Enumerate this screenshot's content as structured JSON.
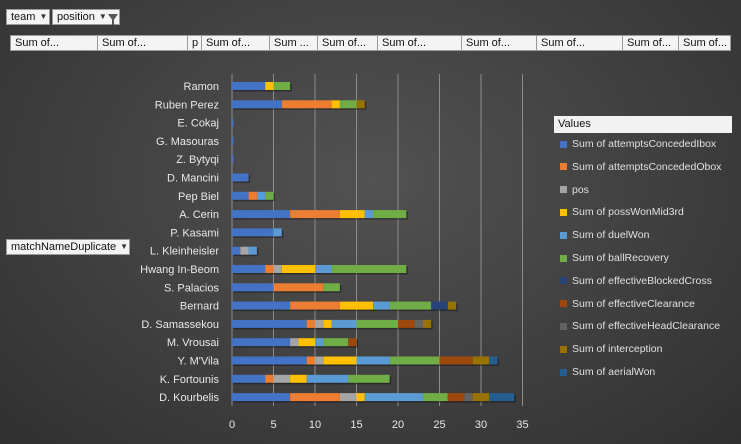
{
  "filters": {
    "team": "team",
    "position": "position"
  },
  "row_field": "matchNameDuplicate",
  "value_fields": [
    "Sum of...",
    "Sum of...",
    "p",
    "Sum of...",
    "Sum ...",
    "Sum of...",
    "Sum of...",
    "Sum of...",
    "Sum of...",
    "Sum of...",
    "Sum of..."
  ],
  "legend": {
    "title": "Values"
  },
  "colors": [
    "#4472c4",
    "#ed7d31",
    "#a5a5a5",
    "#ffc000",
    "#5b9bd5",
    "#70ad47",
    "#264478",
    "#9e480e",
    "#636363",
    "#997300",
    "#255e91"
  ],
  "chart_data": {
    "type": "bar",
    "orientation": "horizontal",
    "stacked": true,
    "grid": true,
    "xlim": [
      0,
      35
    ],
    "xticks": [
      "0",
      "5",
      "10",
      "15",
      "20",
      "25",
      "30",
      "35"
    ],
    "categories": [
      "Ramon",
      "Ruben Perez",
      "E. Cokaj",
      "G. Masouras",
      "Z. Bytyqi",
      "D. Mancini",
      "Pep Biel",
      "A. Cerin",
      "P. Kasami",
      "L. Kleinheisler",
      "Hwang In-Beom",
      "S. Palacios",
      "Bernard",
      "D. Samassekou",
      "M. Vrousai",
      "Y. M'Vila",
      "K. Fortounis",
      "D. Kourbelis"
    ],
    "series": [
      {
        "name": "Sum of attemptsConcededIbox",
        "values": [
          4,
          6,
          0,
          0,
          0,
          2,
          2,
          7,
          5,
          1,
          4,
          5,
          7,
          9,
          7,
          9,
          4,
          7
        ]
      },
      {
        "name": "Sum of attemptsConcededObox",
        "values": [
          0,
          6,
          0,
          0,
          0,
          0,
          1,
          6,
          0,
          0,
          1,
          6,
          6,
          1,
          0,
          1,
          1,
          6
        ]
      },
      {
        "name": "pos",
        "values": [
          0,
          0,
          0,
          0,
          0,
          0,
          0,
          0,
          0,
          1,
          1,
          0,
          0,
          1,
          1,
          1,
          2,
          2
        ]
      },
      {
        "name": "Sum of possWonMid3rd",
        "values": [
          1,
          1,
          0,
          0,
          0,
          0,
          0,
          3,
          0,
          0,
          4,
          0,
          4,
          1,
          2,
          4,
          2,
          1
        ]
      },
      {
        "name": "Sum of duelWon",
        "values": [
          0,
          0,
          0,
          0,
          0,
          0,
          1,
          1,
          1,
          1,
          2,
          0,
          2,
          3,
          1,
          4,
          5,
          7
        ]
      },
      {
        "name": "Sum of ballRecovery",
        "values": [
          2,
          2,
          0,
          0,
          0,
          0,
          1,
          4,
          0,
          0,
          9,
          2,
          5,
          5,
          3,
          6,
          5,
          3
        ]
      },
      {
        "name": "Sum of effectiveBlockedCross",
        "values": [
          0,
          0,
          0,
          0,
          0,
          0,
          0,
          0,
          0,
          0,
          0,
          0,
          2,
          0,
          0,
          0,
          0,
          0
        ]
      },
      {
        "name": "Sum of effectiveClearance",
        "values": [
          0,
          0,
          0,
          0,
          0,
          0,
          0,
          0,
          0,
          0,
          0,
          0,
          0,
          2,
          1,
          4,
          0,
          2
        ]
      },
      {
        "name": "Sum of effectiveHeadClearance",
        "values": [
          0,
          0,
          0,
          0,
          0,
          0,
          0,
          0,
          0,
          0,
          0,
          0,
          0,
          1,
          0,
          0,
          0,
          1
        ]
      },
      {
        "name": "Sum of interception",
        "values": [
          0,
          1,
          0,
          0,
          0,
          0,
          0,
          0,
          0,
          0,
          0,
          0,
          1,
          1,
          0,
          2,
          0,
          2
        ]
      },
      {
        "name": "Sum of aerialWon",
        "values": [
          0,
          0,
          0,
          0,
          0,
          0,
          0,
          0,
          0,
          0,
          0,
          0,
          0,
          0,
          0,
          1,
          0,
          3
        ]
      }
    ]
  }
}
